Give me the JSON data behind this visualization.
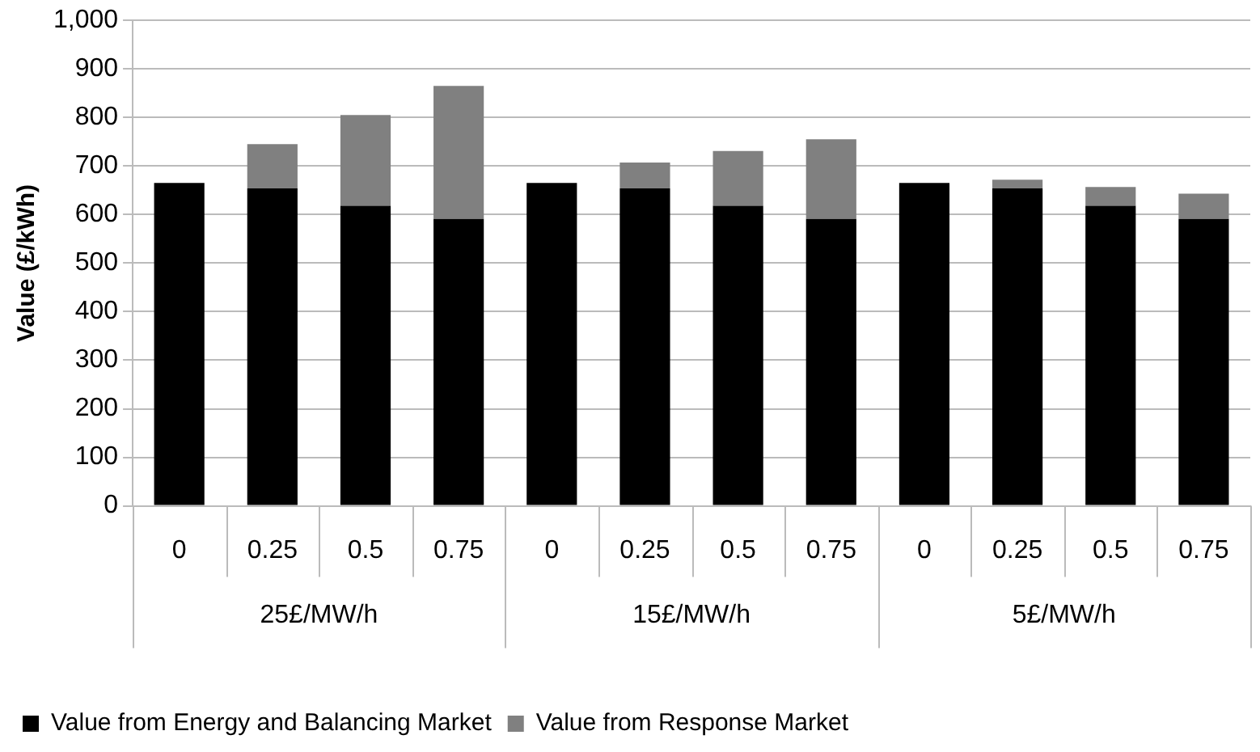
{
  "chart_data": {
    "type": "bar",
    "stacked": true,
    "ylabel": "Value (£/kWh)",
    "categories": [
      "0",
      "0.25",
      "0.5",
      "0.75",
      "0",
      "0.25",
      "0.5",
      "0.75",
      "0",
      "0.25",
      "0.5",
      "0.75"
    ],
    "series": [
      {
        "name": "Value from Energy and Balancing Market",
        "color": "#000000",
        "values": [
          665,
          654,
          618,
          591,
          665,
          654,
          618,
          591,
          665,
          654,
          618,
          591
        ]
      },
      {
        "name": "Value from Response Market",
        "color": "#808080",
        "values": [
          0,
          91,
          187,
          274,
          0,
          53,
          113,
          164,
          0,
          18,
          39,
          52
        ]
      }
    ],
    "annotations": [
      "25£/MW/h",
      "15£/MW/h",
      "5£/MW/h"
    ],
    "ylim": [
      0,
      1000
    ],
    "yticks": [
      0,
      100,
      200,
      300,
      400,
      500,
      600,
      700,
      800,
      900,
      {
        "value": 1000,
        "label": "1,000"
      }
    ],
    "grid": "y",
    "legend": "bottom"
  }
}
